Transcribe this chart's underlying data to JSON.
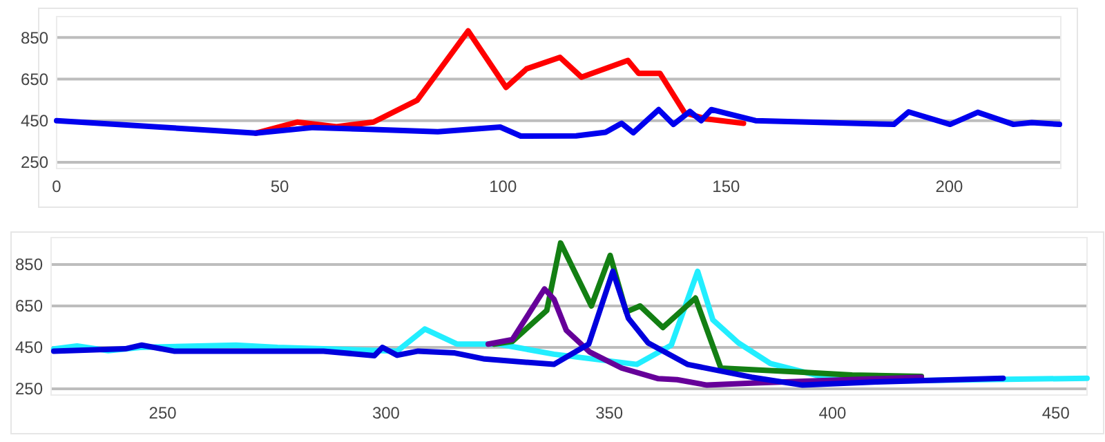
{
  "chart_data": [
    {
      "type": "line",
      "xlim": [
        0,
        225
      ],
      "xticks": [
        0,
        50,
        100,
        150,
        200
      ],
      "ylim": [
        220,
        950
      ],
      "yticks": [
        250,
        450,
        650,
        850
      ],
      "grid": "y",
      "marker": "none",
      "line_style": "solid",
      "series": [
        {
          "color": "#ff0000",
          "x": [
            44.6,
            53.9,
            62.7,
            71,
            80.8,
            92.2,
            100.7,
            105.3,
            112.8,
            117.6,
            128,
            130.4,
            135.2,
            140.7,
            145.4,
            153.9
          ],
          "values": [
            390,
            443,
            421,
            443,
            548,
            881,
            610,
            699,
            754,
            659,
            739,
            677,
            677,
            488,
            459,
            437
          ]
        },
        {
          "color": "#0000ee",
          "x": [
            0,
            44.6,
            57.5,
            69.9,
            85.4,
            99.4,
            104,
            116.4,
            123,
            126.6,
            129.2,
            134.9,
            138.2,
            141.9,
            144.4,
            146.7,
            156.6,
            187.6,
            190.9,
            200.2,
            206.4,
            214.4,
            218.5,
            224.7
          ],
          "values": [
            450,
            390,
            417,
            408,
            397,
            419,
            376,
            377,
            394,
            437,
            392,
            503,
            432,
            494,
            450,
            503,
            450,
            432,
            492,
            432,
            490,
            432,
            441,
            432
          ]
        }
      ]
    },
    {
      "type": "line",
      "xlim": [
        225,
        457
      ],
      "xticks": [
        250,
        300,
        350,
        400,
        450
      ],
      "ylim": [
        220,
        980
      ],
      "yticks": [
        250,
        450,
        650,
        850
      ],
      "grid": "y",
      "marker": "none",
      "line_style": "solid",
      "series": [
        {
          "color": "#22eeff",
          "x": [
            225.6,
            230.8,
            237.8,
            245,
            266.4,
            275.7,
            302.5,
            308.7,
            315.9,
            325.2,
            337.6,
            356.2,
            363.9,
            369.8,
            373.2,
            378.9,
            386.1,
            399.5,
            413.9,
            457
          ],
          "values": [
            443,
            457,
            434,
            450,
            461,
            450,
            432,
            539,
            466,
            466,
            417,
            368,
            461,
            817,
            583,
            472,
            372,
            299,
            288,
            301
          ]
        },
        {
          "color": "#137f13",
          "x": [
            324.2,
            328.3,
            336,
            339.1,
            346,
            350.2,
            353.8,
            356.9,
            362,
            369.3,
            375,
            392,
            404.4,
            419.9
          ],
          "values": [
            466,
            479,
            628,
            954,
            650,
            894,
            621,
            650,
            546,
            688,
            350,
            332,
            317,
            310
          ]
        },
        {
          "color": "#660099",
          "x": [
            322.9,
            328.3,
            335.5,
            337.6,
            340.4,
            345.6,
            352.8,
            361,
            365.2,
            371.9,
            383.7,
            419.9
          ],
          "values": [
            466,
            488,
            732,
            683,
            532,
            428,
            350,
            299,
            294,
            268,
            279,
            306
          ]
        },
        {
          "color": "#0000dd",
          "x": [
            225.6,
            241.6,
            245.3,
            252.5,
            286,
            297.4,
            299.2,
            302.5,
            307.2,
            315.4,
            322.1,
            337.6,
            345.4,
            350.8,
            354.3,
            358.7,
            367.5,
            381.9,
            393.3,
            409.8,
            438.2
          ],
          "values": [
            432,
            443,
            461,
            432,
            432,
            410,
            450,
            412,
            432,
            423,
            394,
            368,
            466,
            817,
            590,
            472,
            368,
            306,
            268,
            283,
            301
          ]
        }
      ]
    }
  ]
}
